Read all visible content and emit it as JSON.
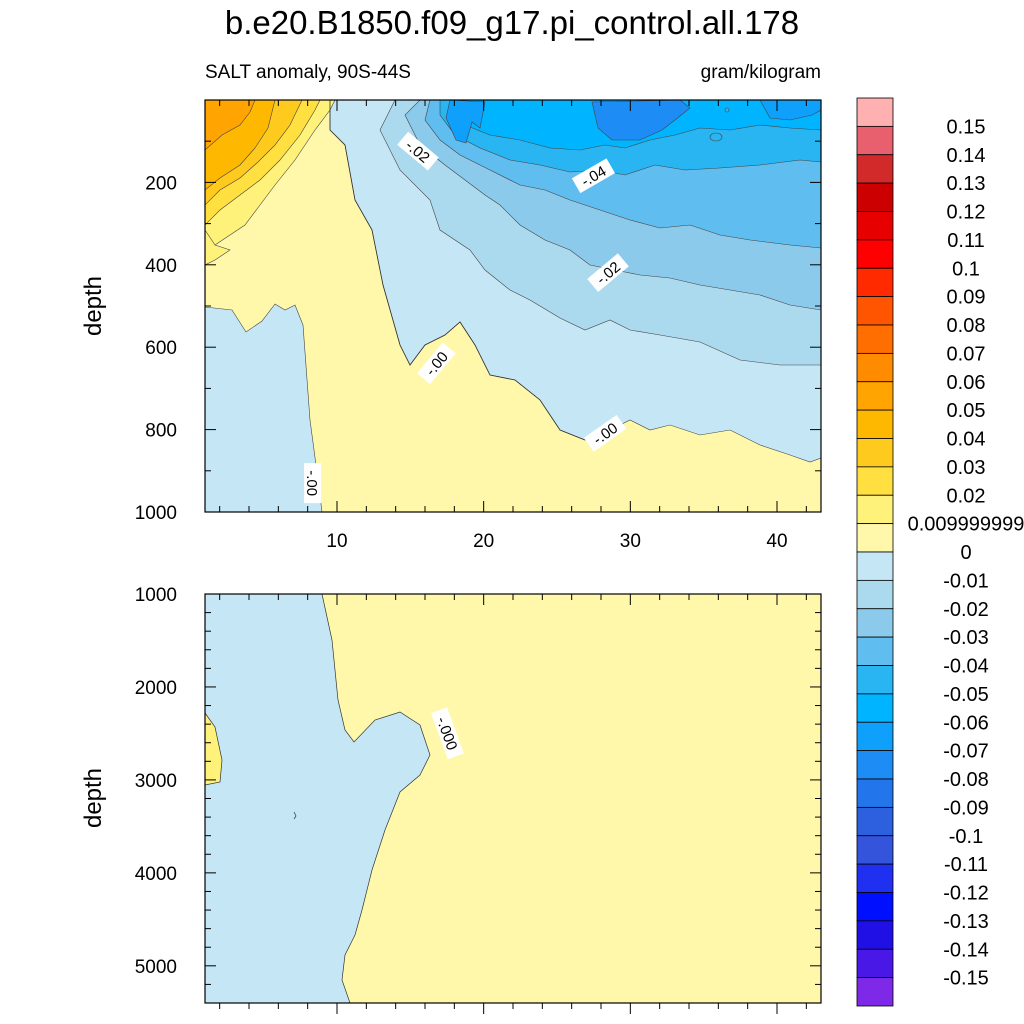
{
  "figure": {
    "title": "b.e20.B1850.f09_g17.pi_control.all.178",
    "subtitle_left": "SALT anomaly, 90S-44S",
    "subtitle_right": "gram/kilogram"
  },
  "chart_data": [
    {
      "type": "contour",
      "panel": "upper",
      "xlabel": "",
      "ylabel": "depth",
      "xlim": [
        1,
        43
      ],
      "ylim": [
        1000,
        0
      ],
      "xticks": [
        10,
        20,
        30,
        40
      ],
      "yticks": [
        200,
        400,
        600,
        800,
        1000
      ],
      "contour_labels": [
        {
          "text": "-.02",
          "x": 15.5,
          "y": 125
        },
        {
          "text": "-.04",
          "x": 27.5,
          "y": 185
        },
        {
          "text": "-.02",
          "x": 28.5,
          "y": 420
        },
        {
          "text": "-.00",
          "x": 16.8,
          "y": 640
        },
        {
          "text": "-.00",
          "x": 28.3,
          "y": 810
        },
        {
          "text": "-.00",
          "x": 8.3,
          "y": 930
        }
      ],
      "regions": [
        {
          "level": 0.0,
          "x": [
            1,
            1,
            3,
            4,
            6,
            8,
            10,
            11,
            12,
            13,
            14,
            16,
            17,
            18,
            19,
            21,
            23,
            25,
            27,
            29,
            31,
            33,
            35,
            38,
            41,
            43,
            43
          ],
          "y": [
            1000,
            500,
            500,
            570,
            520,
            505,
            440,
            240,
            250,
            290,
            380,
            545,
            550,
            550,
            510,
            700,
            720,
            760,
            820,
            830,
            795,
            790,
            800,
            830,
            860,
            870,
            1000
          ],
          "note": "positive-weak fill region bounded by zero contour"
        },
        {
          "level": -0.01,
          "x": [
            1,
            1,
            3,
            4,
            6,
            8,
            8.5,
            9.3,
            1
          ],
          "y": [
            1000,
            500,
            500,
            570,
            520,
            505,
            700,
            1000,
            1000
          ]
        }
      ]
    },
    {
      "type": "contour",
      "panel": "lower",
      "xlabel": "",
      "ylabel": "depth",
      "xlim": [
        1,
        43
      ],
      "ylim": [
        1000,
        5400
      ],
      "yticks": [
        1000,
        2000,
        3000,
        4000,
        5000
      ],
      "contour_labels": [
        {
          "text": "-.000",
          "x": 17.5,
          "y": 2500
        }
      ]
    }
  ],
  "colorbar": {
    "labels": [
      "0.15",
      "0.14",
      "0.13",
      "0.12",
      "0.11",
      "0.1",
      "0.09",
      "0.08",
      "0.07",
      "0.06",
      "0.05",
      "0.04",
      "0.03",
      "0.02",
      "0.009999999",
      "0",
      "-0.01",
      "-0.02",
      "-0.03",
      "-0.04",
      "-0.05",
      "-0.06",
      "-0.07",
      "-0.08",
      "-0.09",
      "-0.1",
      "-0.11",
      "-0.12",
      "-0.13",
      "-0.14",
      "-0.15"
    ],
    "colors": [
      "#FFB0B0",
      "#E8606E",
      "#D22A2A",
      "#CC0000",
      "#E60000",
      "#FF0000",
      "#FF2A00",
      "#FF5500",
      "#FF6E00",
      "#FF8C00",
      "#FFA400",
      "#FFB800",
      "#FFCA1E",
      "#FFE040",
      "#FFF27A",
      "#FFF8AA",
      "#C5E6F4",
      "#ABDAEF",
      "#8CCAEC",
      "#60BDF0",
      "#28B5F2",
      "#00B4FF",
      "#0EA0FA",
      "#1E8CF5",
      "#2275EB",
      "#2C60DE",
      "#3554DC",
      "#2030F0",
      "#0010FF",
      "#2010E6",
      "#4A18E6",
      "#7E28E8"
    ]
  }
}
